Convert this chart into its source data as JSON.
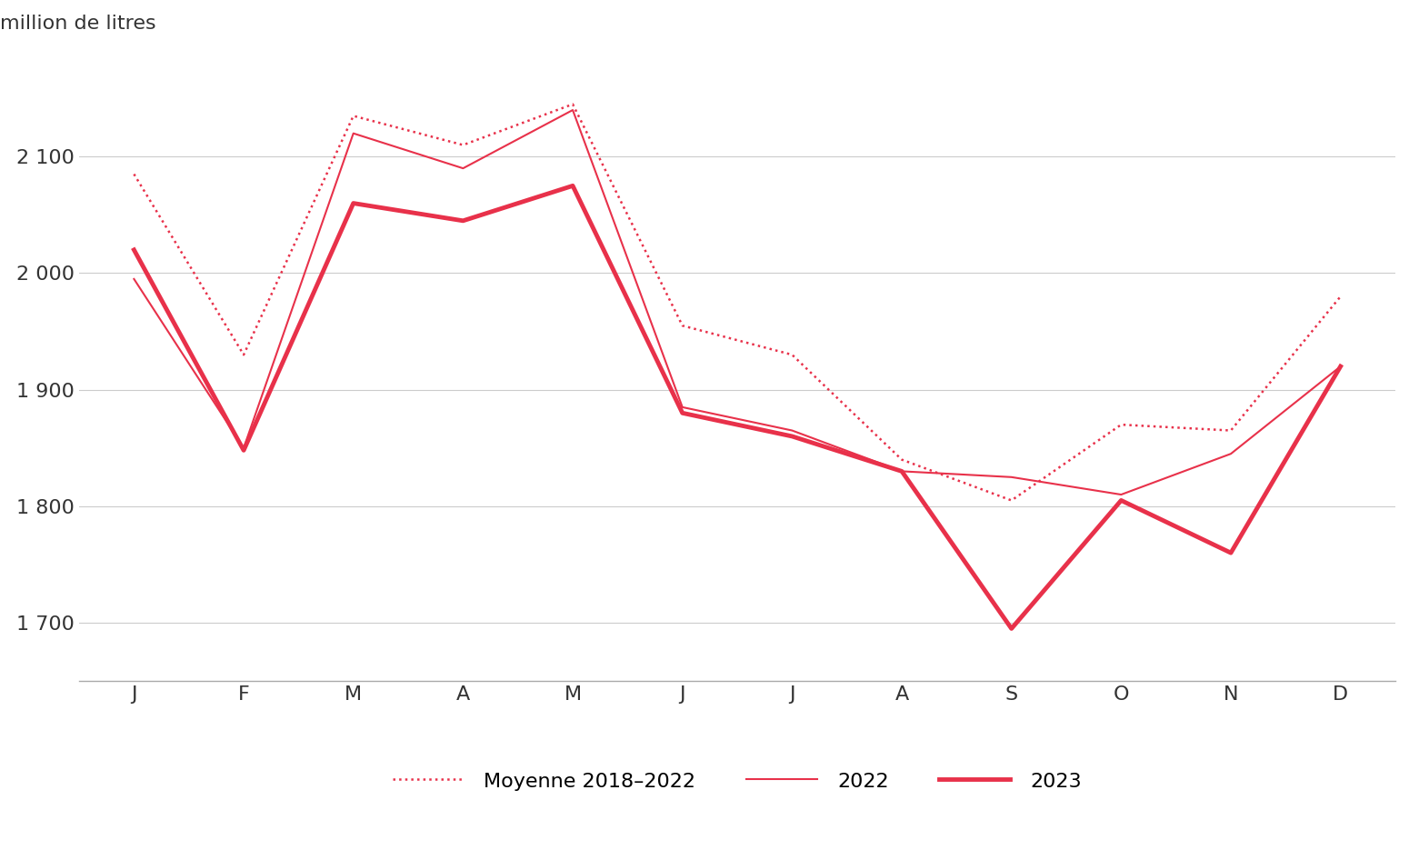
{
  "months": [
    "J",
    "F",
    "M",
    "A",
    "M",
    "J",
    "J",
    "A",
    "S",
    "O",
    "N",
    "D"
  ],
  "moyenne_2018_2022": [
    2085,
    1930,
    2135,
    2110,
    2145,
    1955,
    1930,
    1840,
    1805,
    1870,
    1865,
    1980
  ],
  "serie_2022": [
    1995,
    1850,
    2120,
    2090,
    2140,
    1885,
    1865,
    1830,
    1825,
    1810,
    1845,
    1920
  ],
  "serie_2023": [
    2020,
    1848,
    2060,
    2045,
    2075,
    1880,
    1860,
    1830,
    1695,
    1805,
    1760,
    1920
  ],
  "ylabel": "million de litres",
  "ylim": [
    1650,
    2200
  ],
  "yticks": [
    1700,
    1800,
    1900,
    2000,
    2100
  ],
  "ytick_labels": [
    "1 700",
    "1 800",
    "1 900",
    "2 000",
    "2 100"
  ],
  "color_moyenne": "#e8314a",
  "color_2022": "#e8314a",
  "color_2023": "#e8314a",
  "legend_labels": [
    "Moyenne 2018–2022",
    "2022",
    "2023"
  ],
  "background_color": "#ffffff",
  "grid_color": "#cccccc",
  "axis_color": "#aaaaaa"
}
